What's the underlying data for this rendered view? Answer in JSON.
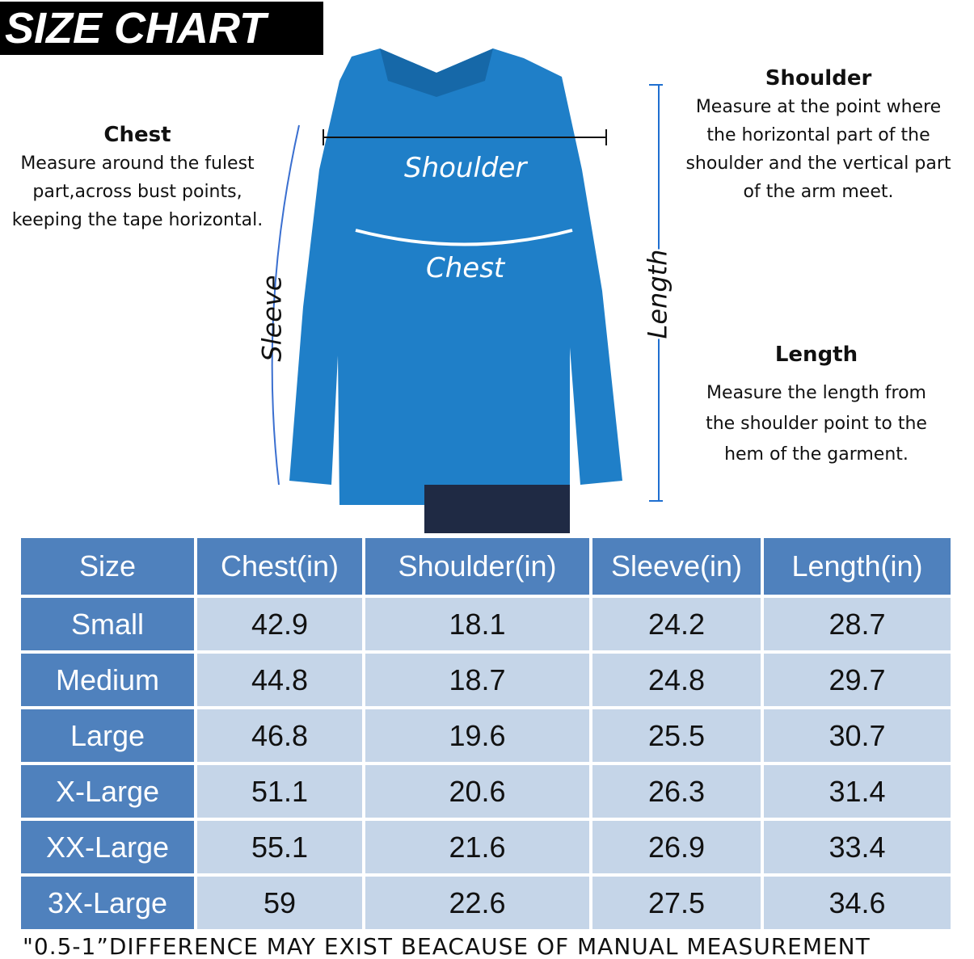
{
  "title": "SIZE CHART",
  "chest": {
    "heading": "Chest",
    "lines": [
      "Measure around the fulest",
      "part,across bust points,",
      "keeping the tape horizontal."
    ]
  },
  "shoulder": {
    "heading": "Shoulder",
    "lines": [
      "Measure at the point where",
      "the horizontal part of the",
      "shoulder and the vertical part",
      "of the arm meet."
    ]
  },
  "length": {
    "heading": "Length",
    "lines": [
      "Measure the length from",
      "the shoulder point to the",
      "hem of the garment."
    ]
  },
  "labels": {
    "shoulder": "Shoulder",
    "chest": "Chest",
    "sleeve": "Sleeve",
    "length": "Length"
  },
  "colors": {
    "header": "#4f81bd",
    "cell": "#c5d5e8",
    "shirt": "#1f7fc8"
  },
  "table": {
    "headers": [
      "Size",
      "Chest(in)",
      "Shoulder(in)",
      "Sleeve(in)",
      "Length(in)"
    ],
    "rows": [
      [
        "Small",
        "42.9",
        "18.1",
        "24.2",
        "28.7"
      ],
      [
        "Medium",
        "44.8",
        "18.7",
        "24.8",
        "29.7"
      ],
      [
        "Large",
        "46.8",
        "19.6",
        "25.5",
        "30.7"
      ],
      [
        "X-Large",
        "51.1",
        "20.6",
        "26.3",
        "31.4"
      ],
      [
        "XX-Large",
        "55.1",
        "21.6",
        "26.9",
        "33.4"
      ],
      [
        "3X-Large",
        "59",
        "22.6",
        "27.5",
        "34.6"
      ]
    ]
  },
  "footer": "\"0.5-1”DIFFERENCE MAY EXIST BEACAUSE OF MANUAL MEASUREMENT"
}
